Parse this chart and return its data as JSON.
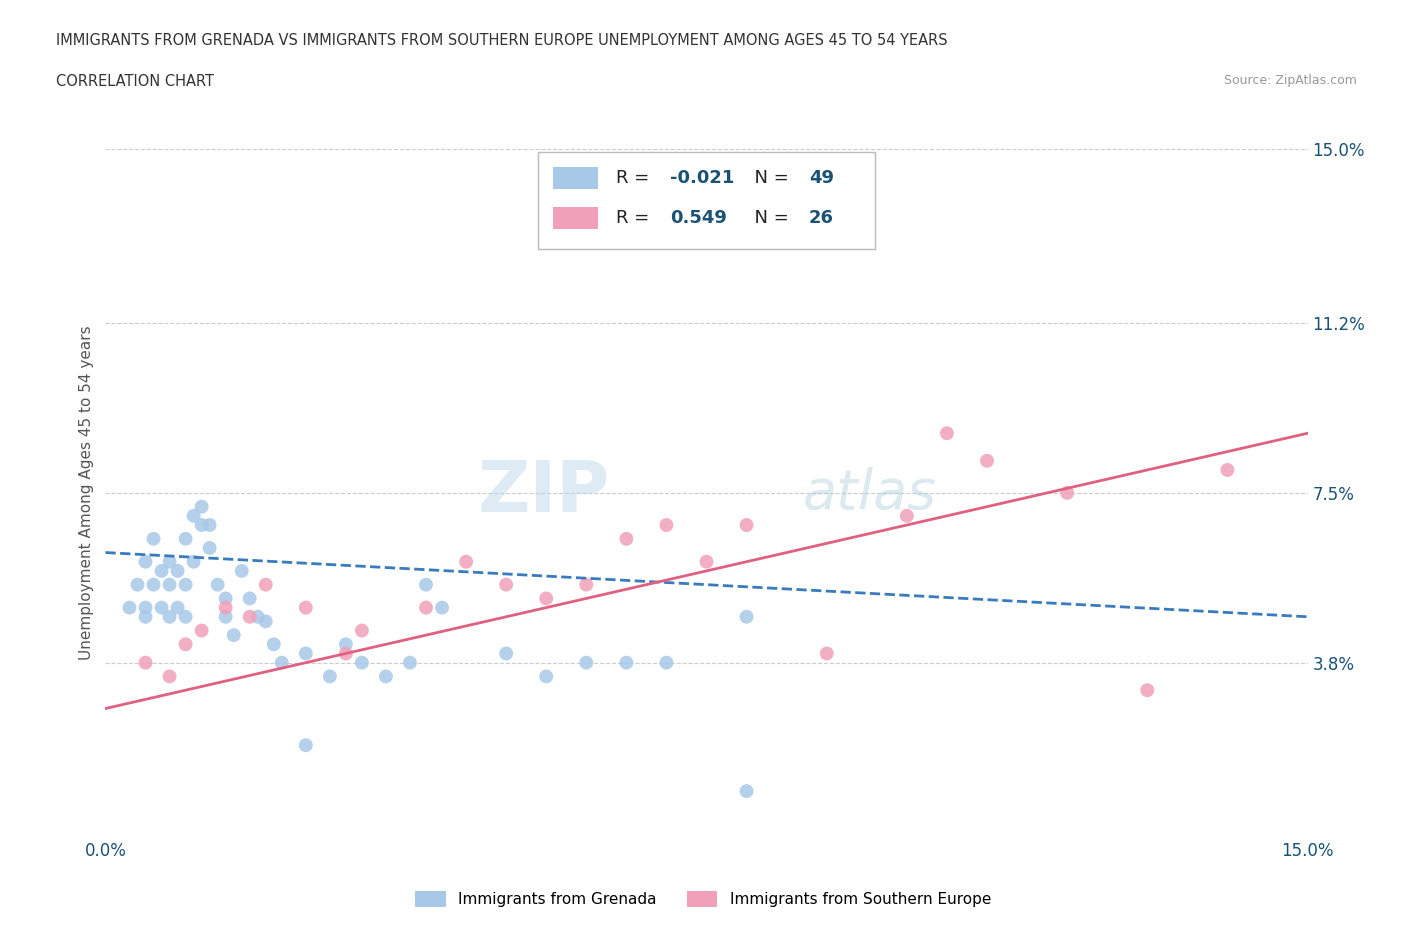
{
  "title_line1": "IMMIGRANTS FROM GRENADA VS IMMIGRANTS FROM SOUTHERN EUROPE UNEMPLOYMENT AMONG AGES 45 TO 54 YEARS",
  "title_line2": "CORRELATION CHART",
  "source": "Source: ZipAtlas.com",
  "watermark_zip": "ZIP",
  "watermark_atlas": "atlas",
  "ylabel": "Unemployment Among Ages 45 to 54 years",
  "xlim": [
    0,
    0.15
  ],
  "ylim": [
    0,
    0.15
  ],
  "ytick_labels_right": [
    "3.8%",
    "7.5%",
    "11.2%",
    "15.0%"
  ],
  "ytick_positions_right": [
    0.038,
    0.075,
    0.112,
    0.15
  ],
  "grenada_color": "#a8c8e8",
  "southern_europe_color": "#f0a0b8",
  "grenada_line_color": "#3a7abf",
  "southern_europe_line_color": "#e06080",
  "grenada_R": -0.021,
  "grenada_N": 49,
  "southern_europe_R": 0.549,
  "southern_europe_N": 26,
  "grenada_scatter_x": [
    0.003,
    0.004,
    0.005,
    0.005,
    0.005,
    0.006,
    0.006,
    0.007,
    0.007,
    0.008,
    0.008,
    0.008,
    0.009,
    0.009,
    0.01,
    0.01,
    0.01,
    0.011,
    0.011,
    0.012,
    0.012,
    0.013,
    0.013,
    0.014,
    0.015,
    0.015,
    0.016,
    0.017,
    0.018,
    0.019,
    0.02,
    0.021,
    0.022,
    0.025,
    0.028,
    0.03,
    0.032,
    0.035,
    0.038,
    0.04,
    0.042,
    0.05,
    0.055,
    0.06,
    0.065,
    0.07,
    0.025,
    0.08,
    0.08
  ],
  "grenada_scatter_y": [
    0.05,
    0.055,
    0.06,
    0.05,
    0.048,
    0.055,
    0.065,
    0.05,
    0.058,
    0.048,
    0.055,
    0.06,
    0.05,
    0.058,
    0.048,
    0.055,
    0.065,
    0.06,
    0.07,
    0.068,
    0.072,
    0.063,
    0.068,
    0.055,
    0.052,
    0.048,
    0.044,
    0.058,
    0.052,
    0.048,
    0.047,
    0.042,
    0.038,
    0.04,
    0.035,
    0.042,
    0.038,
    0.035,
    0.038,
    0.055,
    0.05,
    0.04,
    0.035,
    0.038,
    0.038,
    0.038,
    0.02,
    0.048,
    0.01
  ],
  "southern_europe_scatter_x": [
    0.005,
    0.008,
    0.01,
    0.012,
    0.015,
    0.018,
    0.02,
    0.025,
    0.03,
    0.032,
    0.04,
    0.045,
    0.05,
    0.055,
    0.06,
    0.065,
    0.07,
    0.075,
    0.08,
    0.09,
    0.1,
    0.105,
    0.11,
    0.12,
    0.13,
    0.14
  ],
  "southern_europe_scatter_y": [
    0.038,
    0.035,
    0.042,
    0.045,
    0.05,
    0.048,
    0.055,
    0.05,
    0.04,
    0.045,
    0.05,
    0.06,
    0.055,
    0.052,
    0.055,
    0.065,
    0.068,
    0.06,
    0.068,
    0.04,
    0.07,
    0.088,
    0.082,
    0.075,
    0.032,
    0.08
  ],
  "grenada_trend_x": [
    0.0,
    0.15
  ],
  "grenada_trend_y": [
    0.062,
    0.048
  ],
  "se_trend_x": [
    0.0,
    0.15
  ],
  "se_trend_y": [
    0.028,
    0.088
  ],
  "grid_color": "#cccccc",
  "background_color": "#ffffff",
  "tick_color": "#1a5276",
  "title_color": "#333333",
  "legend_grenada": "Immigrants from Grenada",
  "legend_southern_europe": "Immigrants from Southern Europe"
}
